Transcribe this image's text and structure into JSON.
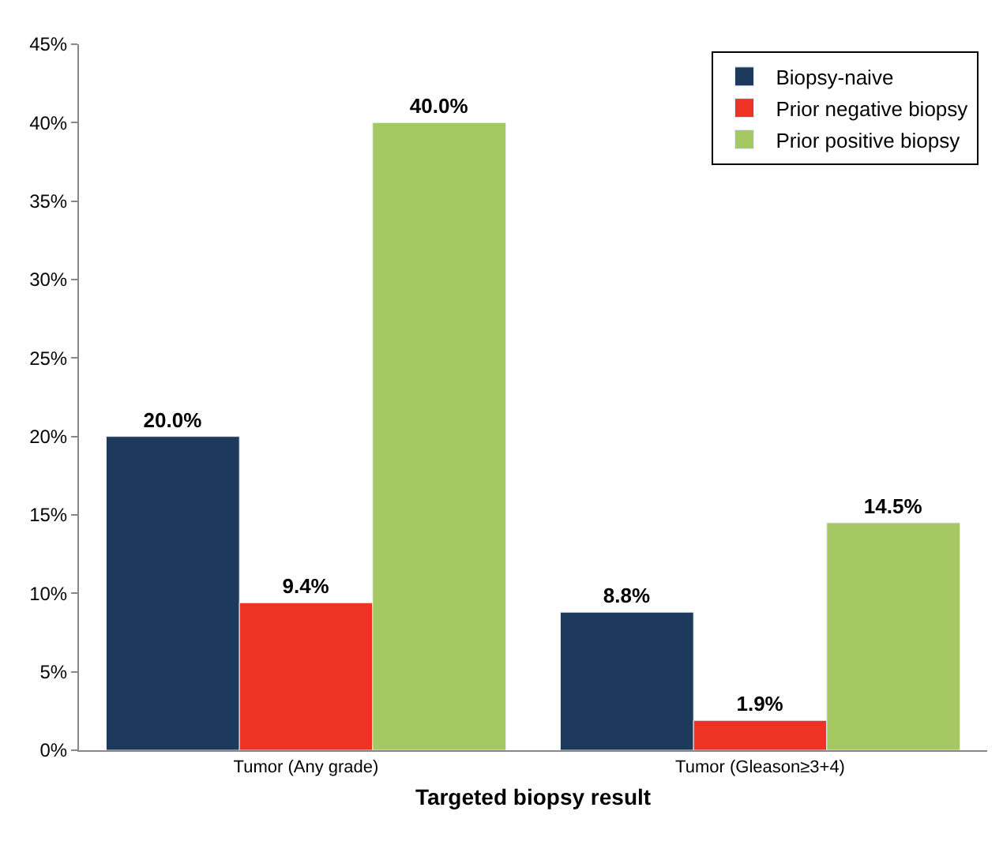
{
  "chart_data": {
    "type": "bar",
    "xlabel": "Targeted biopsy result",
    "categories": [
      "Tumor (Any grade)",
      "Tumor (Gleason≥3+4)"
    ],
    "series": [
      {
        "name": "Biopsy-naive",
        "color": "#1d3a5c",
        "values": [
          20.0,
          8.8
        ],
        "value_labels": [
          "20.0%",
          "8.8%"
        ]
      },
      {
        "name": "Prior negative biopsy",
        "color": "#ee3224",
        "values": [
          9.4,
          1.9
        ],
        "value_labels": [
          "9.4%",
          "1.9%"
        ]
      },
      {
        "name": "Prior positive biopsy",
        "color": "#a5c862",
        "values": [
          40.0,
          14.5
        ],
        "value_labels": [
          "40.0%",
          "14.5%"
        ]
      }
    ],
    "ylim": [
      0,
      45
    ],
    "yticks": [
      {
        "value": 0,
        "label": "0%"
      },
      {
        "value": 5,
        "label": "5%"
      },
      {
        "value": 10,
        "label": "10%"
      },
      {
        "value": 15,
        "label": "15%"
      },
      {
        "value": 20,
        "label": "20%"
      },
      {
        "value": 25,
        "label": "25%"
      },
      {
        "value": 30,
        "label": "30%"
      },
      {
        "value": 35,
        "label": "35%"
      },
      {
        "value": 40,
        "label": "40%"
      },
      {
        "value": 45,
        "label": "45%"
      }
    ],
    "legend": "top right"
  }
}
